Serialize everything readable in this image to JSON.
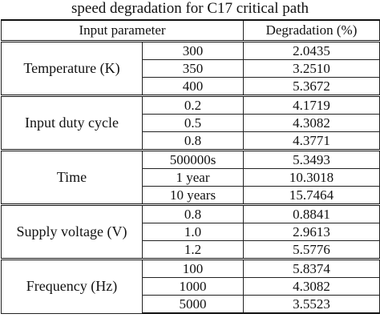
{
  "caption": "speed degradation for C17 critical path",
  "header": {
    "input_parameter": "Input parameter",
    "degradation": "Degradation (%)"
  },
  "groups": [
    {
      "parameter": "Temperature (K)",
      "rows": [
        {
          "value": "300",
          "degradation": "2.0435"
        },
        {
          "value": "350",
          "degradation": "3.2510"
        },
        {
          "value": "400",
          "degradation": "5.3672"
        }
      ]
    },
    {
      "parameter": "Input duty cycle",
      "rows": [
        {
          "value": "0.2",
          "degradation": "4.1719"
        },
        {
          "value": "0.5",
          "degradation": "4.3082"
        },
        {
          "value": "0.8",
          "degradation": "4.3771"
        }
      ]
    },
    {
      "parameter": "Time",
      "rows": [
        {
          "value": "500000s",
          "degradation": "5.3493"
        },
        {
          "value": "1 year",
          "degradation": "10.3018"
        },
        {
          "value": "10 years",
          "degradation": "15.7464"
        }
      ]
    },
    {
      "parameter": "Supply voltage (V)",
      "rows": [
        {
          "value": "0.8",
          "degradation": "0.8841"
        },
        {
          "value": "1.0",
          "degradation": "2.9613"
        },
        {
          "value": "1.2",
          "degradation": "5.5776"
        }
      ]
    },
    {
      "parameter": "Frequency (Hz)",
      "rows": [
        {
          "value": "100",
          "degradation": "5.8374"
        },
        {
          "value": "1000",
          "degradation": "4.3082"
        },
        {
          "value": "5000",
          "degradation": "3.5523"
        }
      ]
    }
  ]
}
